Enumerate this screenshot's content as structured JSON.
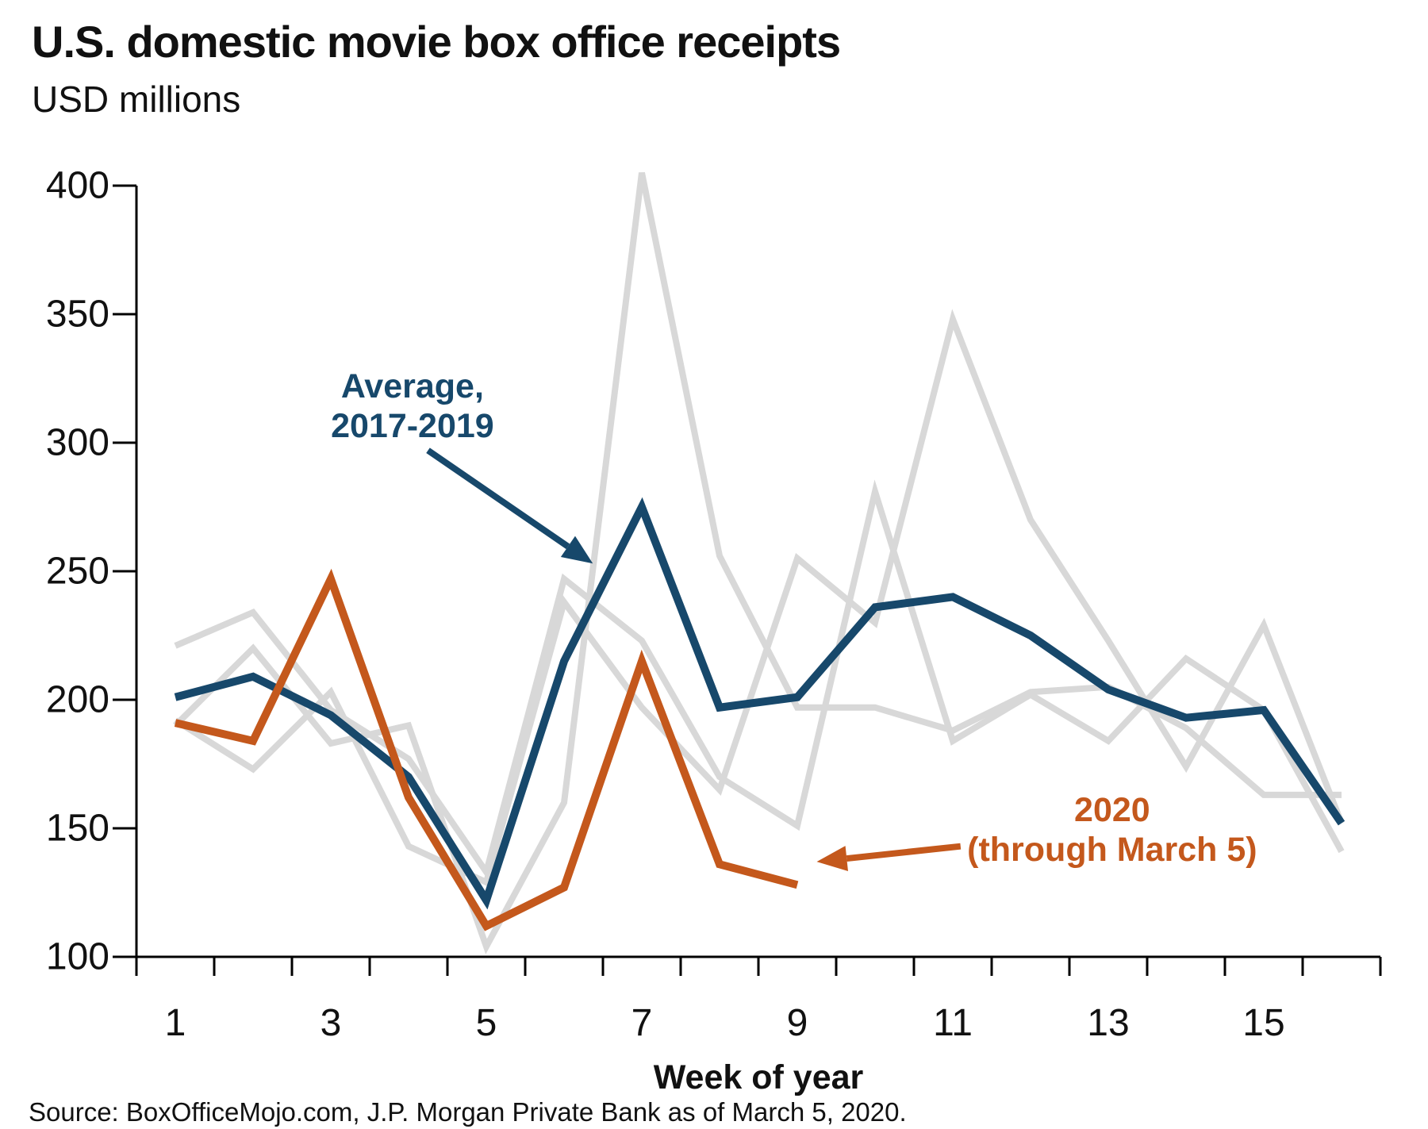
{
  "page": {
    "title": "U.S. domestic movie box office receipts",
    "subtitle": "USD millions",
    "source": "Source: BoxOfficeMojo.com, J.P. Morgan Private Bank as of March 5, 2020."
  },
  "colors": {
    "average_blue": "#17486B",
    "year2020_orange": "#C4581C",
    "prior_years_gray": "#D8D8D8",
    "axis_black": "#000000",
    "text_black": "#111111"
  },
  "chart_data": {
    "type": "line",
    "title": "U.S. domestic movie box office receipts",
    "subtitle": "USD millions",
    "xlabel": "Week of year",
    "ylabel": "",
    "x_range": [
      0.5,
      16.5
    ],
    "ylim": [
      100,
      400
    ],
    "grid": false,
    "legend_position": "none (direct line annotations)",
    "x_ticks": [
      1,
      3,
      5,
      7,
      9,
      11,
      13,
      15
    ],
    "y_ticks": [
      400,
      350,
      300,
      250,
      200,
      150,
      100
    ],
    "x": [
      1,
      2,
      3,
      4,
      5,
      6,
      7,
      8,
      9,
      10,
      11,
      12,
      13,
      14,
      15,
      16
    ],
    "series": [
      {
        "name": "prior-year-gray-a",
        "role": "background year 2017-2019",
        "color": "#D8D8D8",
        "width": 8,
        "values": [
          190,
          220,
          183,
          190,
          104,
          160,
          405,
          256,
          197,
          197,
          188,
          203,
          205,
          189,
          163,
          163
        ]
      },
      {
        "name": "prior-year-gray-b",
        "role": "background year 2017-2019",
        "color": "#D8D8D8",
        "width": 8,
        "values": [
          221,
          234,
          196,
          177,
          133,
          247,
          223,
          170,
          151,
          281,
          184,
          202,
          184,
          216,
          196,
          141
        ]
      },
      {
        "name": "prior-year-gray-c",
        "role": "background year 2017-2019",
        "color": "#D8D8D8",
        "width": 8,
        "values": [
          192,
          173,
          203,
          143,
          129,
          238,
          197,
          165,
          255,
          230,
          348,
          270,
          223,
          174,
          229,
          152
        ]
      },
      {
        "name": "Average, 2017-2019",
        "role": "average line",
        "color": "#17486B",
        "width": 10,
        "values": [
          201,
          209,
          194,
          170,
          122,
          215,
          275,
          197,
          201,
          236,
          240,
          225,
          204,
          193,
          196,
          152
        ]
      },
      {
        "name": "2020 (through March 5)",
        "role": "current year line",
        "color": "#C4581C",
        "width": 10,
        "values": [
          191,
          184,
          247,
          162,
          112,
          127,
          215,
          136,
          128
        ]
      }
    ],
    "annotations": [
      {
        "id": "avg-label",
        "lines": [
          "Average,",
          "2017-2019"
        ],
        "color": "#17486B",
        "week": 4.05,
        "value": 314,
        "arrow": {
          "from": {
            "week": 4.25,
            "value": 297
          },
          "to": {
            "week": 6.37,
            "value": 253
          }
        }
      },
      {
        "id": "y2020-label",
        "lines": [
          "2020",
          "(through March 5)"
        ],
        "color": "#C4581C",
        "week": 13.05,
        "value": 149,
        "arrow": {
          "from": {
            "week": 11.1,
            "value": 143
          },
          "to": {
            "week": 9.25,
            "value": 137
          }
        }
      }
    ]
  }
}
